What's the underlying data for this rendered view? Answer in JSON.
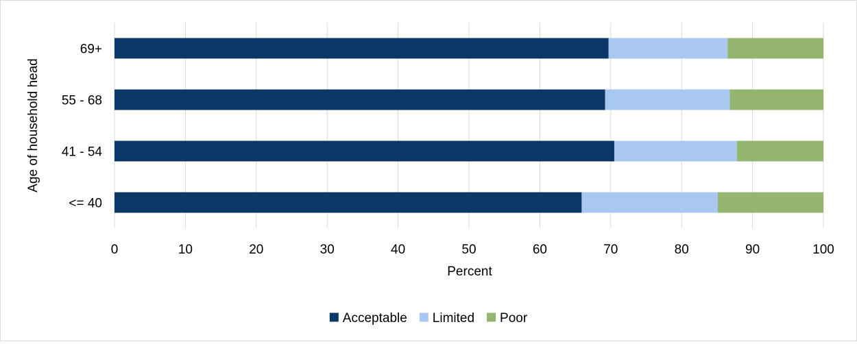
{
  "chart_data": {
    "type": "bar",
    "orientation": "horizontal",
    "stacked": true,
    "title": "",
    "xlabel": "Percent",
    "ylabel": "Age of household head",
    "xlim": [
      0,
      100
    ],
    "xticks": [
      "0",
      "10",
      "20",
      "30",
      "40",
      "50",
      "60",
      "70",
      "80",
      "90",
      "100"
    ],
    "categories": [
      "69+",
      "55 - 68",
      "41 - 54",
      "<= 40"
    ],
    "series": [
      {
        "name": "Acceptable",
        "values": [
          69.7,
          69.2,
          70.5,
          65.9
        ],
        "color": "#0b3766"
      },
      {
        "name": "Limited",
        "values": [
          16.8,
          17.6,
          17.3,
          19.2
        ],
        "color": "#a9c8ef"
      },
      {
        "name": "Poor",
        "values": [
          13.5,
          13.2,
          12.2,
          14.9
        ],
        "color": "#93b56f"
      }
    ],
    "grid": "vertical",
    "legend": "bottom-center"
  }
}
